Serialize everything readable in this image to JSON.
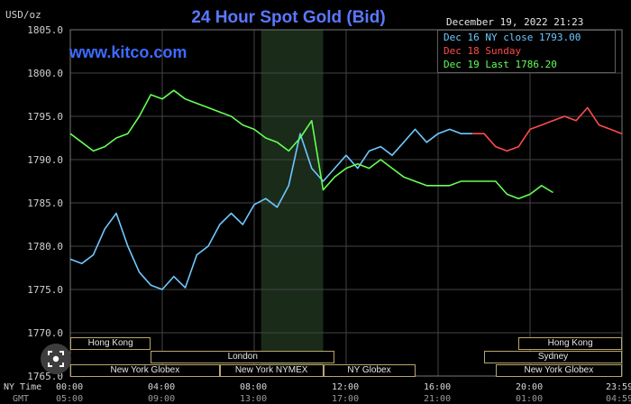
{
  "header": {
    "unit": "USD/oz",
    "datetime": "December 19, 2022 21:23",
    "watermark": "www.kitco.com"
  },
  "icons": {
    "overlay": "image-search-icon"
  },
  "colors": {
    "background": "#000000",
    "grid": "#444444",
    "highlight_band": "#1a2b1a",
    "title": "#5b78ff",
    "dec16": "#6ec8ff",
    "dec18": "#ff4b4b",
    "dec19": "#66ff55"
  },
  "sessions": [
    {
      "label": "Hong Kong",
      "row": 1,
      "start": 0.0,
      "end": 3.5
    },
    {
      "label": "London",
      "row": 2,
      "start": 3.5,
      "end": 11.5
    },
    {
      "label": "New York Globex",
      "row": 3,
      "start": 0.0,
      "end": 6.5
    },
    {
      "label": "New York NYMEX",
      "row": 3,
      "start": 6.5,
      "end": 11.0
    },
    {
      "label": "NY Globex",
      "row": 3,
      "start": 11.0,
      "end": 15.0
    },
    {
      "label": "Hong Kong",
      "row": 1,
      "start": 19.5,
      "end": 24.0
    },
    {
      "label": "Sydney",
      "row": 2,
      "start": 18.0,
      "end": 24.0
    },
    {
      "label": "New York Globex",
      "row": 3,
      "start": 18.5,
      "end": 24.0
    }
  ],
  "time_axis": {
    "ny_label": "NY Time",
    "gmt_label": "GMT",
    "ny_ticks": [
      "00:00",
      "04:00",
      "08:00",
      "12:00",
      "16:00",
      "20:00",
      "23:59"
    ],
    "gmt_ticks": [
      "05:00",
      "09:00",
      "13:00",
      "17:00",
      "21:00",
      "01:00",
      "04:59"
    ]
  },
  "chart_data": {
    "type": "line",
    "title": "24 Hour Spot Gold (Bid)",
    "ylabel": "USD/oz",
    "ylim": [
      1765,
      1805
    ],
    "xlim": [
      0,
      24
    ],
    "yticks": [
      "1805.0",
      "1800.0",
      "1795.0",
      "1790.0",
      "1785.0",
      "1780.0",
      "1775.0",
      "1770.0",
      "1765.0"
    ],
    "ytick_values": [
      1805,
      1800,
      1795,
      1790,
      1785,
      1780,
      1775,
      1770,
      1765
    ],
    "highlight_range": [
      8.3,
      11.0
    ],
    "grid": true,
    "legend_position": "top-right",
    "series": [
      {
        "name": "Dec 16 NY close 1793.00",
        "color": "#6ec8ff",
        "x": [
          0,
          0.5,
          1.0,
          1.5,
          2.0,
          2.5,
          3.0,
          3.5,
          4.0,
          4.5,
          5.0,
          5.5,
          6.0,
          6.5,
          7.0,
          7.5,
          8.0,
          8.5,
          9.0,
          9.5,
          10.0,
          10.5,
          11.0,
          11.5,
          12.0,
          12.5,
          13.0,
          13.5,
          14.0,
          14.5,
          15.0,
          15.5,
          16.0,
          16.5,
          17.0,
          17.5
        ],
        "y": [
          1778.5,
          1778.0,
          1779.0,
          1782.0,
          1783.8,
          1780.0,
          1777.0,
          1775.5,
          1775.0,
          1776.5,
          1775.2,
          1779.0,
          1780.0,
          1782.5,
          1783.8,
          1782.5,
          1784.8,
          1785.5,
          1784.5,
          1787.0,
          1793.0,
          1789.0,
          1787.5,
          1789.0,
          1790.5,
          1789.0,
          1791.0,
          1791.5,
          1790.5,
          1792.0,
          1793.5,
          1792.0,
          1793.0,
          1793.5,
          1793.0,
          1793.0
        ]
      },
      {
        "name": "Dec 18 Sunday",
        "color": "#ff4b4b",
        "x": [
          17.5,
          18.0,
          18.5,
          19.0,
          19.5,
          20.0,
          20.5,
          21.0,
          21.5,
          22.0,
          22.5,
          23.0,
          23.5,
          23.99
        ],
        "y": [
          1793.0,
          1793.0,
          1791.5,
          1791.0,
          1791.5,
          1793.5,
          1794.0,
          1794.5,
          1795.0,
          1794.5,
          1796.0,
          1794.0,
          1793.5,
          1793.0
        ]
      },
      {
        "name": "Dec 19 Last 1786.20",
        "color": "#66ff55",
        "x": [
          0,
          0.5,
          1.0,
          1.5,
          2.0,
          2.5,
          3.0,
          3.5,
          4.0,
          4.5,
          5.0,
          5.5,
          6.0,
          6.5,
          7.0,
          7.5,
          8.0,
          8.5,
          9.0,
          9.5,
          10.0,
          10.5,
          11.0,
          11.5,
          12.0,
          12.5,
          13.0,
          13.5,
          14.0,
          14.5,
          15.0,
          15.5,
          16.0,
          16.5,
          17.0,
          17.5,
          18.0,
          18.5,
          19.0,
          19.5,
          20.0,
          20.5,
          21.0
        ],
        "y": [
          1793.0,
          1792.0,
          1791.0,
          1791.5,
          1792.5,
          1793.0,
          1795.0,
          1797.5,
          1797.0,
          1798.0,
          1797.0,
          1796.5,
          1796.0,
          1795.5,
          1795.0,
          1794.0,
          1793.5,
          1792.5,
          1792.0,
          1791.0,
          1792.5,
          1794.5,
          1786.5,
          1788.0,
          1789.0,
          1789.5,
          1789.0,
          1790.0,
          1789.0,
          1788.0,
          1787.5,
          1787.0,
          1787.0,
          1787.0,
          1787.5,
          1787.5,
          1787.5,
          1787.5,
          1786.0,
          1785.5,
          1786.0,
          1787.0,
          1786.2
        ]
      }
    ]
  }
}
